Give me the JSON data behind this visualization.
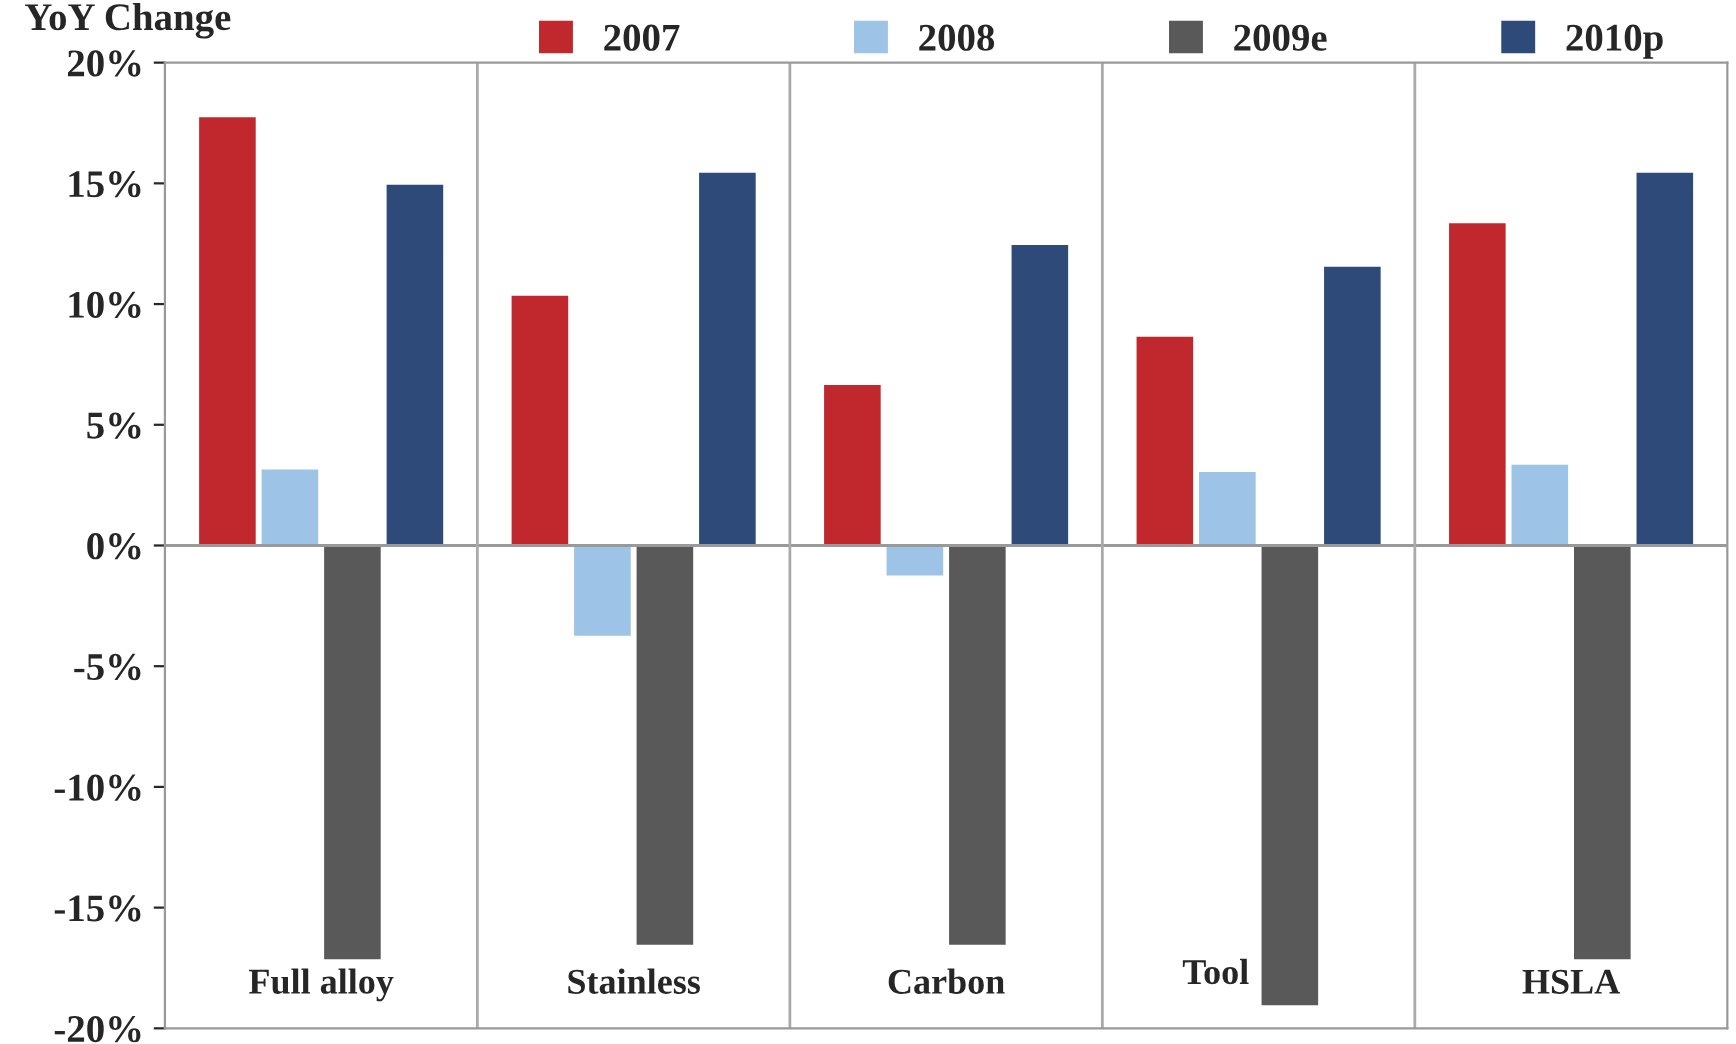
{
  "chart_data": {
    "type": "bar",
    "ylabel": "YoY Change",
    "categories": [
      "Full alloy",
      "Stainless",
      "Carbon",
      "Tool",
      "HSLA"
    ],
    "series": [
      {
        "name": "2007",
        "color": "#c0282d",
        "values": [
          17.8,
          10.4,
          6.7,
          8.7,
          13.4
        ]
      },
      {
        "name": "2008",
        "color": "#9dc3e6",
        "values": [
          3.2,
          -3.8,
          -1.3,
          3.1,
          3.4
        ]
      },
      {
        "name": "2009e",
        "color": "#595959",
        "values": [
          -17.2,
          -16.6,
          -16.6,
          -19.1,
          -17.2
        ]
      },
      {
        "name": "2010p",
        "color": "#2e4a78",
        "values": [
          15.0,
          15.5,
          12.5,
          11.6,
          15.5
        ]
      }
    ],
    "ylim": [
      -20,
      20
    ],
    "yticks": [
      {
        "value": -20,
        "label": "-20%"
      },
      {
        "value": -15,
        "label": "-15%"
      },
      {
        "value": -10,
        "label": "-10%"
      },
      {
        "value": -5,
        "label": "-5%"
      },
      {
        "value": 0,
        "label": "0%"
      },
      {
        "value": 5,
        "label": "5%"
      },
      {
        "value": 10,
        "label": "10%"
      },
      {
        "value": 15,
        "label": "15%"
      },
      {
        "value": 20,
        "label": "20%"
      }
    ],
    "grid": "x",
    "legend": "top"
  }
}
